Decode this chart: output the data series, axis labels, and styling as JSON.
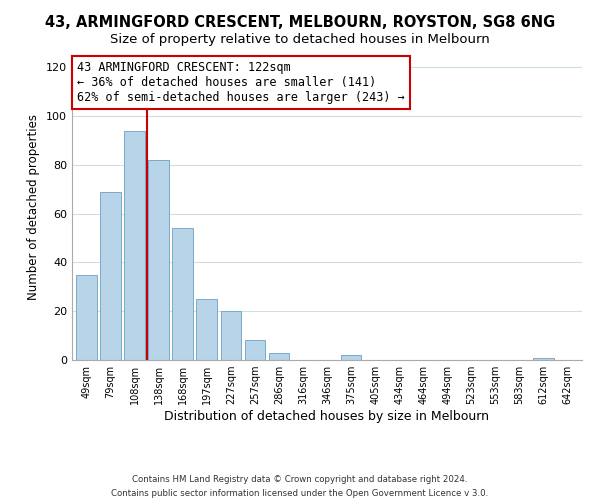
{
  "title": "43, ARMINGFORD CRESCENT, MELBOURN, ROYSTON, SG8 6NG",
  "subtitle": "Size of property relative to detached houses in Melbourn",
  "xlabel": "Distribution of detached houses by size in Melbourn",
  "ylabel": "Number of detached properties",
  "bar_labels": [
    "49sqm",
    "79sqm",
    "108sqm",
    "138sqm",
    "168sqm",
    "197sqm",
    "227sqm",
    "257sqm",
    "286sqm",
    "316sqm",
    "346sqm",
    "375sqm",
    "405sqm",
    "434sqm",
    "464sqm",
    "494sqm",
    "523sqm",
    "553sqm",
    "583sqm",
    "612sqm",
    "642sqm"
  ],
  "bar_values": [
    35,
    69,
    94,
    82,
    54,
    25,
    20,
    8,
    3,
    0,
    0,
    2,
    0,
    0,
    0,
    0,
    0,
    0,
    0,
    1,
    0
  ],
  "bar_color": "#b8d4e8",
  "bar_edge_color": "#7aaacb",
  "vline_x_index": 2.5,
  "vline_color": "#cc0000",
  "annotation_title": "43 ARMINGFORD CRESCENT: 122sqm",
  "annotation_line1": "← 36% of detached houses are smaller (141)",
  "annotation_line2": "62% of semi-detached houses are larger (243) →",
  "annotation_box_edge": "#cc0000",
  "ylim": [
    0,
    125
  ],
  "yticks": [
    0,
    20,
    40,
    60,
    80,
    100,
    120
  ],
  "footer1": "Contains HM Land Registry data © Crown copyright and database right 2024.",
  "footer2": "Contains public sector information licensed under the Open Government Licence v 3.0.",
  "bg_color": "#ffffff",
  "plot_bg_color": "#ffffff",
  "grid_color": "#d0dde8",
  "title_fontsize": 10.5,
  "subtitle_fontsize": 9.5
}
